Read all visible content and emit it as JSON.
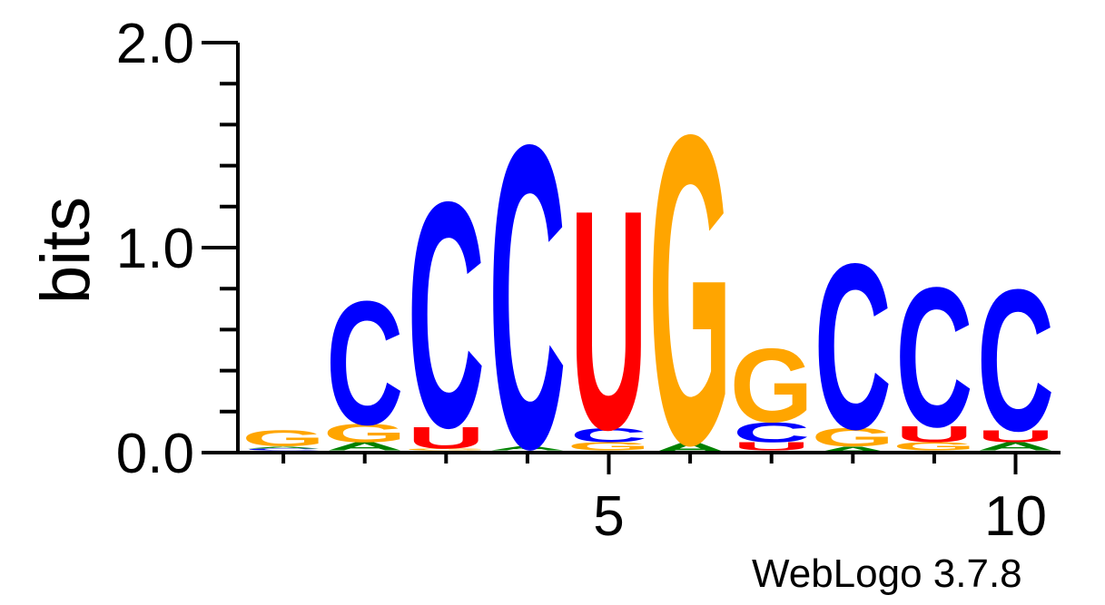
{
  "chart_data": {
    "type": "sequence-logo",
    "ylabel": "bits",
    "ylim": [
      0,
      2
    ],
    "y_ticks": [
      "0.0",
      "1.0",
      "2.0"
    ],
    "x_tick_labels": [
      {
        "position": 5,
        "label": "5"
      },
      {
        "position": 10,
        "label": "10"
      }
    ],
    "colors": {
      "C": "#0000ff",
      "G": "#ffa500",
      "U": "#ff0000",
      "A": "#008000"
    },
    "positions": [
      {
        "position": 1,
        "stack": [
          {
            "letter": "U",
            "height": 0.01
          },
          {
            "letter": "C",
            "height": 0.01
          },
          {
            "letter": "A",
            "height": 0.01
          },
          {
            "letter": "G",
            "height": 0.08
          }
        ]
      },
      {
        "position": 2,
        "stack": [
          {
            "letter": "U",
            "height": 0.01
          },
          {
            "letter": "A",
            "height": 0.04
          },
          {
            "letter": "G",
            "height": 0.09
          },
          {
            "letter": "C",
            "height": 0.62
          }
        ]
      },
      {
        "position": 3,
        "stack": [
          {
            "letter": "A",
            "height": 0.01
          },
          {
            "letter": "G",
            "height": 0.01
          },
          {
            "letter": "U",
            "height": 0.11
          },
          {
            "letter": "C",
            "height": 1.13
          }
        ]
      },
      {
        "position": 4,
        "stack": [
          {
            "letter": "G",
            "height": 0.01
          },
          {
            "letter": "A",
            "height": 0.02
          },
          {
            "letter": "C",
            "height": 1.52
          }
        ]
      },
      {
        "position": 5,
        "stack": [
          {
            "letter": "A",
            "height": 0.01
          },
          {
            "letter": "G",
            "height": 0.04
          },
          {
            "letter": "C",
            "height": 0.07
          },
          {
            "letter": "U",
            "height": 1.1
          }
        ]
      },
      {
        "position": 6,
        "stack": [
          {
            "letter": "A",
            "height": 0.05
          },
          {
            "letter": "G",
            "height": 1.55
          }
        ]
      },
      {
        "position": 7,
        "stack": [
          {
            "letter": "A",
            "height": 0.01
          },
          {
            "letter": "U",
            "height": 0.04
          },
          {
            "letter": "C",
            "height": 0.1
          },
          {
            "letter": "G",
            "height": 0.37
          }
        ]
      },
      {
        "position": 8,
        "stack": [
          {
            "letter": "A",
            "height": 0.03
          },
          {
            "letter": "G",
            "height": 0.09
          },
          {
            "letter": "C",
            "height": 0.83
          }
        ]
      },
      {
        "position": 9,
        "stack": [
          {
            "letter": "A",
            "height": 0.01
          },
          {
            "letter": "G",
            "height": 0.04
          },
          {
            "letter": "U",
            "height": 0.08
          },
          {
            "letter": "C",
            "height": 0.7
          }
        ]
      },
      {
        "position": 10,
        "stack": [
          {
            "letter": "G",
            "height": 0.01
          },
          {
            "letter": "A",
            "height": 0.04
          },
          {
            "letter": "U",
            "height": 0.06
          },
          {
            "letter": "C",
            "height": 0.71
          }
        ]
      }
    ]
  },
  "credit": "WebLogo 3.7.8"
}
